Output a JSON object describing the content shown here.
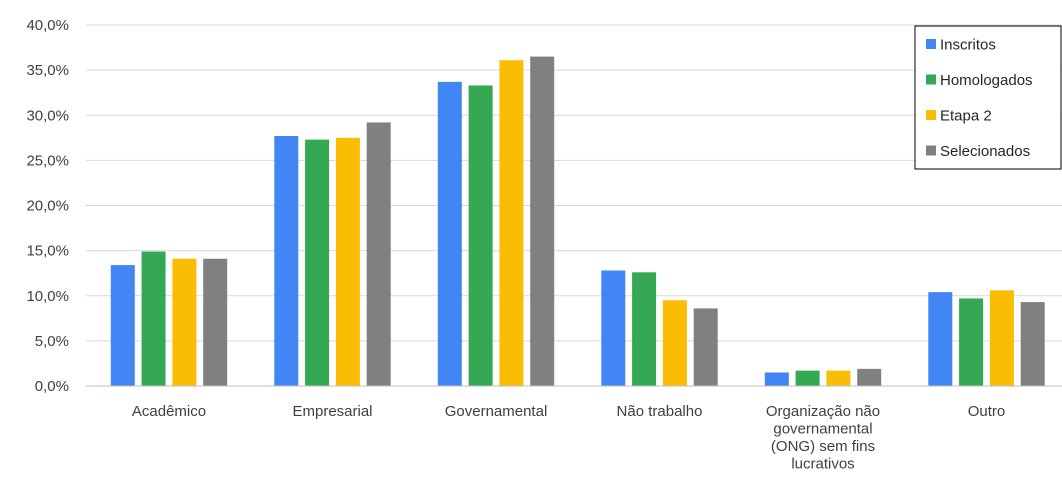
{
  "chart_data": {
    "type": "bar",
    "categories": [
      [
        "Acadêmico"
      ],
      [
        "Empresarial"
      ],
      [
        "Governamental"
      ],
      [
        "Não trabalho"
      ],
      [
        "Organização não",
        "governamental",
        "(ONG) sem fins",
        "lucrativos"
      ],
      [
        "Outro"
      ]
    ],
    "series": [
      {
        "name": "Inscritos",
        "color": "#4285f4",
        "values": [
          13.4,
          27.7,
          33.7,
          12.8,
          1.5,
          10.4
        ]
      },
      {
        "name": "Homologados",
        "color": "#34a853",
        "values": [
          14.9,
          27.3,
          33.3,
          12.6,
          1.7,
          9.7
        ]
      },
      {
        "name": "Etapa 2",
        "color": "#fbbc04",
        "values": [
          14.1,
          27.5,
          36.1,
          9.5,
          1.7,
          10.6
        ]
      },
      {
        "name": "Selecionados",
        "color": "#808080",
        "values": [
          14.1,
          29.2,
          36.5,
          8.6,
          1.9,
          9.3
        ]
      }
    ],
    "ylim": [
      0,
      40
    ],
    "yticks": [
      "0,0%",
      "5,0%",
      "10,0%",
      "15,0%",
      "20,0%",
      "25,0%",
      "30,0%",
      "35,0%",
      "40,0%"
    ],
    "grid": true,
    "legend": "top-right"
  }
}
